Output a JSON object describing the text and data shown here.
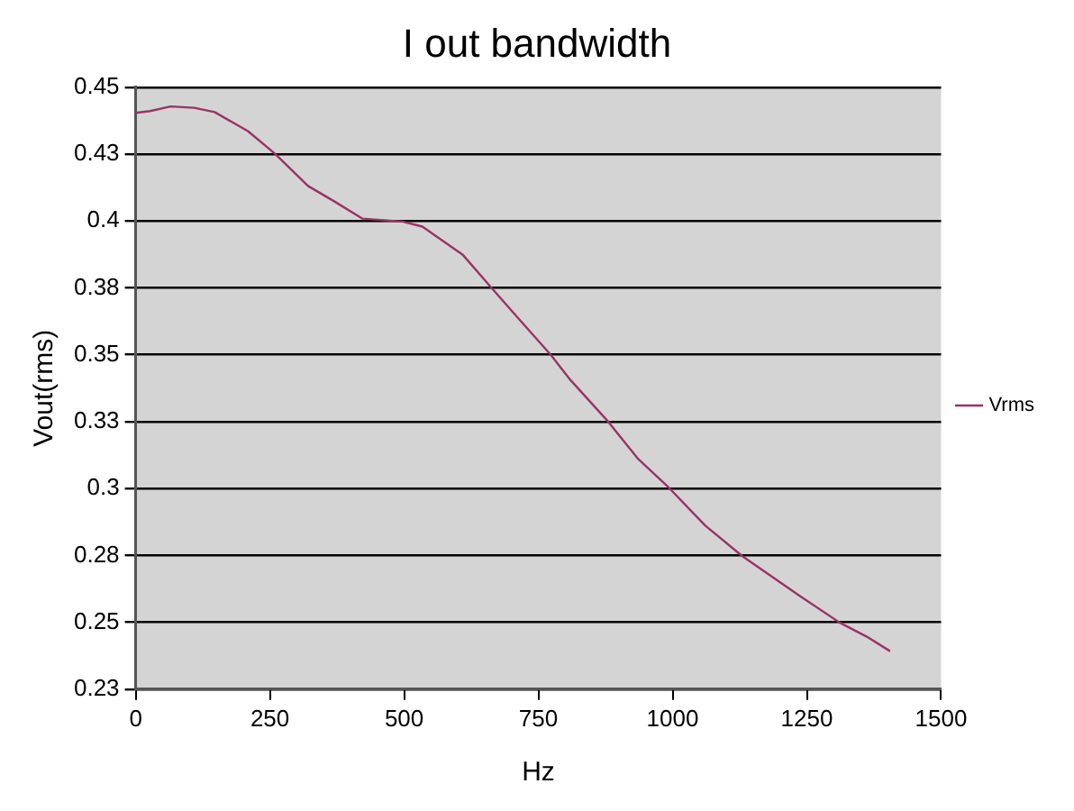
{
  "chart_data": {
    "type": "line",
    "title": "I out bandwidth",
    "xlabel": "Hz",
    "ylabel": "Vout(rms)",
    "x": [
      0,
      27,
      65,
      109,
      147,
      209,
      259,
      321,
      371,
      422,
      497,
      534,
      609,
      665,
      710,
      773,
      810,
      880,
      936,
      993,
      1061,
      1130,
      1236,
      1311,
      1361,
      1405
    ],
    "series": [
      {
        "name": "Vrms",
        "color": "#993366",
        "values": [
          0.4404,
          0.4411,
          0.4428,
          0.4423,
          0.4407,
          0.4336,
          0.4252,
          0.4131,
          0.4072,
          0.4009,
          0.3998,
          0.3979,
          0.3874,
          0.3745,
          0.3642,
          0.35,
          0.3405,
          0.325,
          0.311,
          0.3003,
          0.2861,
          0.2747,
          0.26,
          0.2499,
          0.2447,
          0.2392
        ]
      }
    ],
    "xlim": [
      0,
      1500
    ],
    "xticks": [
      0,
      250,
      500,
      750,
      1000,
      1250,
      1500
    ],
    "ylim": [
      0.225,
      0.45
    ],
    "yticks": [
      {
        "value": 0.225,
        "label": "0.23"
      },
      {
        "value": 0.25,
        "label": "0.25"
      },
      {
        "value": 0.275,
        "label": "0.28"
      },
      {
        "value": 0.3,
        "label": "0.3"
      },
      {
        "value": 0.325,
        "label": "0.33"
      },
      {
        "value": 0.35,
        "label": "0.35"
      },
      {
        "value": 0.375,
        "label": "0.38"
      },
      {
        "value": 0.4,
        "label": "0.4"
      },
      {
        "value": 0.425,
        "label": "0.43"
      },
      {
        "value": 0.45,
        "label": "0.45"
      }
    ],
    "grid": "y",
    "legend": "right",
    "marker": "none",
    "line_style": "solid"
  }
}
